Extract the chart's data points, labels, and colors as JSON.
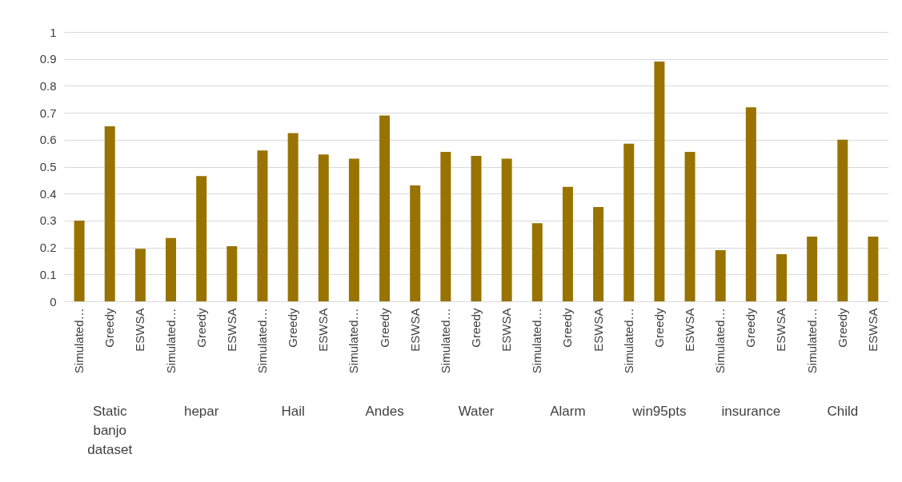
{
  "chart_data": {
    "type": "bar",
    "categories": [
      "Simulated…",
      "Greedy",
      "ESWSA",
      "Simulated…",
      "Greedy",
      "ESWSA",
      "Simulated…",
      "Greedy",
      "ESWSA",
      "Simulated…",
      "Greedy",
      "ESWSA",
      "Simulated…",
      "Greedy",
      "ESWSA",
      "Simulated…",
      "Greedy",
      "ESWSA",
      "Simulated…",
      "Greedy",
      "ESWSA",
      "Simulated…",
      "Greedy",
      "ESWSA",
      "Simulated…",
      "Greedy",
      "ESWSA"
    ],
    "values": [
      0.3,
      0.65,
      0.195,
      0.235,
      0.465,
      0.205,
      0.56,
      0.625,
      0.545,
      0.53,
      0.69,
      0.43,
      0.555,
      0.54,
      0.53,
      0.29,
      0.425,
      0.35,
      0.585,
      0.89,
      0.555,
      0.19,
      0.72,
      0.175,
      0.24,
      0.6,
      0.24
    ],
    "color": "#997300",
    "ylim": [
      0,
      1
    ],
    "yticks": [
      0,
      0.1,
      0.2,
      0.3,
      0.4,
      0.5,
      0.6,
      0.7,
      0.8,
      0.9,
      1
    ],
    "grid": "y",
    "annotations": [
      "Static banjo dataset",
      "hepar",
      "Hail",
      "Andes",
      "Water",
      "Alarm",
      "win95pts",
      "insurance",
      "Child"
    ]
  }
}
